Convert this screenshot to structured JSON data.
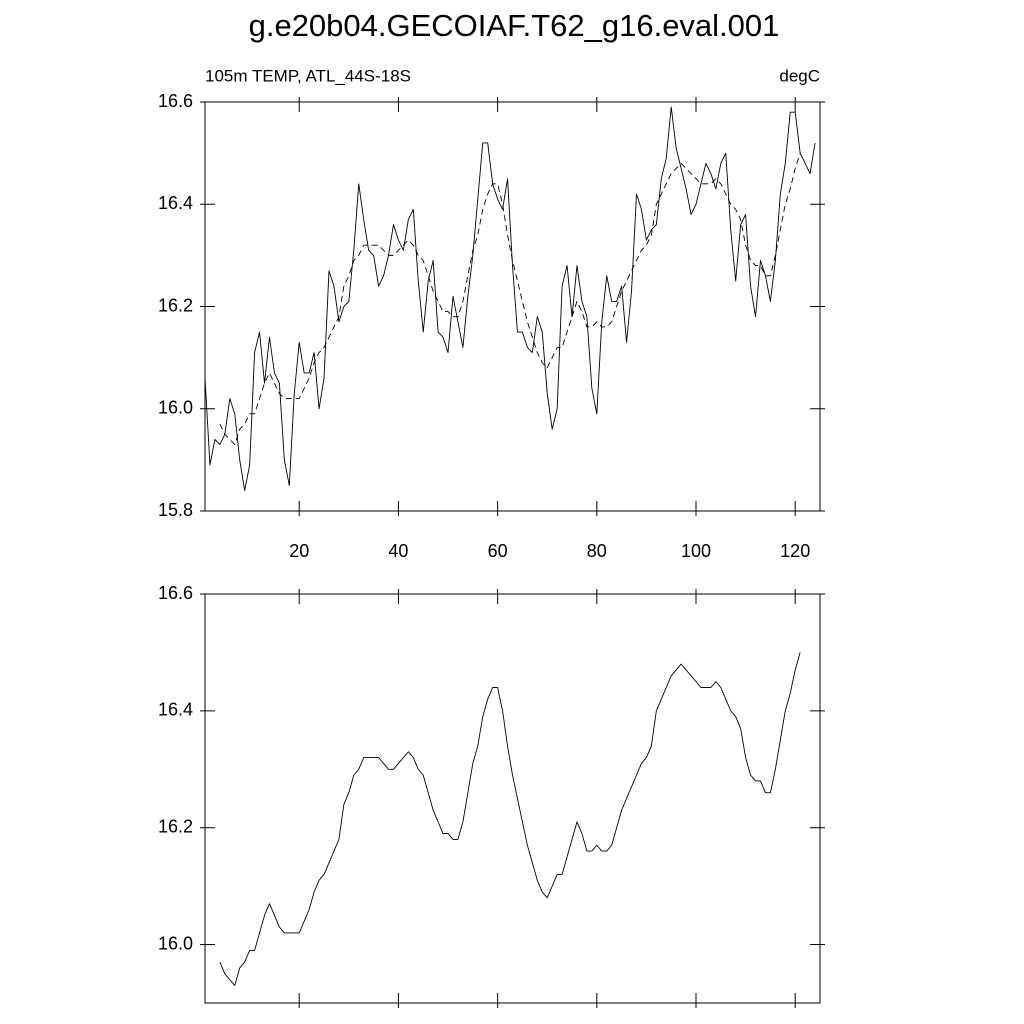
{
  "chart_data": [
    {
      "type": "line",
      "title": "g.e20b04.GECOIAF.T62_g16.eval.001",
      "subtitle": "105m TEMP, ATL_44S-18S",
      "units_label": "degC",
      "x": [
        1,
        2,
        3,
        4,
        5,
        6,
        7,
        8,
        9,
        10,
        11,
        12,
        13,
        14,
        15,
        16,
        17,
        18,
        19,
        20,
        21,
        22,
        23,
        24,
        25,
        26,
        27,
        28,
        29,
        30,
        31,
        32,
        33,
        34,
        35,
        36,
        37,
        38,
        39,
        40,
        41,
        42,
        43,
        44,
        45,
        46,
        47,
        48,
        49,
        50,
        51,
        52,
        53,
        54,
        55,
        56,
        57,
        58,
        59,
        60,
        61,
        62,
        63,
        64,
        65,
        66,
        67,
        68,
        69,
        70,
        71,
        72,
        73,
        74,
        75,
        76,
        77,
        78,
        79,
        80,
        81,
        82,
        83,
        84,
        85,
        86,
        87,
        88,
        89,
        90,
        91,
        92,
        93,
        94,
        95,
        96,
        97,
        98,
        99,
        100,
        101,
        102,
        103,
        104,
        105,
        106,
        107,
        108,
        109,
        110,
        111,
        112,
        113,
        114,
        115,
        116,
        117,
        118,
        119,
        120,
        121,
        122,
        123,
        124
      ],
      "series": [
        {
          "color": "#000000",
          "style": "solid",
          "values": [
            16.06,
            15.89,
            15.94,
            15.93,
            15.95,
            16.02,
            15.99,
            15.9,
            15.84,
            15.89,
            16.11,
            16.15,
            16.05,
            16.14,
            16.07,
            16.05,
            15.9,
            15.85,
            16.03,
            16.13,
            16.07,
            16.07,
            16.11,
            16.0,
            16.06,
            16.27,
            16.24,
            16.17,
            16.2,
            16.21,
            16.31,
            16.44,
            16.37,
            16.31,
            16.3,
            16.24,
            16.26,
            16.3,
            16.36,
            16.33,
            16.31,
            16.37,
            16.39,
            16.25,
            16.15,
            16.25,
            16.29,
            16.15,
            16.14,
            16.11,
            16.22,
            16.17,
            16.12,
            16.22,
            16.3,
            16.41,
            16.52,
            16.52,
            16.44,
            16.41,
            16.39,
            16.45,
            16.28,
            16.15,
            16.15,
            16.12,
            16.11,
            16.18,
            16.15,
            16.03,
            15.96,
            16.0,
            16.24,
            16.28,
            16.18,
            16.28,
            16.21,
            16.18,
            16.04,
            15.99,
            16.17,
            16.26,
            16.21,
            16.21,
            16.24,
            16.13,
            16.23,
            16.42,
            16.39,
            16.33,
            16.35,
            16.36,
            16.45,
            16.49,
            16.59,
            16.51,
            16.47,
            16.43,
            16.38,
            16.4,
            16.44,
            16.48,
            16.46,
            16.43,
            16.48,
            16.5,
            16.35,
            16.25,
            16.36,
            16.38,
            16.24,
            16.18,
            16.29,
            16.26,
            16.21,
            16.29,
            16.42,
            16.48,
            16.58,
            16.58,
            16.5,
            16.48,
            16.46,
            16.52
          ]
        },
        {
          "color": "#000000",
          "style": "dashed",
          "values": [
            null,
            null,
            null,
            15.97,
            15.95,
            15.94,
            15.93,
            15.96,
            15.97,
            15.99,
            15.99,
            16.02,
            16.05,
            16.07,
            16.05,
            16.03,
            16.02,
            16.02,
            16.02,
            16.02,
            16.04,
            16.06,
            16.09,
            16.11,
            16.12,
            16.14,
            16.16,
            16.18,
            16.24,
            16.26,
            16.29,
            16.3,
            16.32,
            16.32,
            16.32,
            16.32,
            16.31,
            16.3,
            16.3,
            16.31,
            16.32,
            16.33,
            16.32,
            16.3,
            16.29,
            16.26,
            16.23,
            16.21,
            16.19,
            16.19,
            16.18,
            16.18,
            16.21,
            16.26,
            16.31,
            16.34,
            16.39,
            16.42,
            16.44,
            16.44,
            16.4,
            16.34,
            16.29,
            16.25,
            16.21,
            16.17,
            16.14,
            16.11,
            16.09,
            16.08,
            16.1,
            16.12,
            16.12,
            16.15,
            16.18,
            16.21,
            16.19,
            16.16,
            16.16,
            16.17,
            16.16,
            16.16,
            16.17,
            16.2,
            16.23,
            16.25,
            16.27,
            16.29,
            16.31,
            16.32,
            16.34,
            16.4,
            16.42,
            16.44,
            16.46,
            16.47,
            16.48,
            16.47,
            16.46,
            16.45,
            16.44,
            16.44,
            16.44,
            16.45,
            16.44,
            16.42,
            16.4,
            16.39,
            16.37,
            16.32,
            16.29,
            16.28,
            16.28,
            16.26,
            16.26,
            16.3,
            16.35,
            16.4,
            16.43,
            16.47,
            16.5,
            null,
            null,
            null
          ]
        }
      ],
      "xlim": [
        1,
        125
      ],
      "xticks": [
        20,
        40,
        60,
        80,
        100,
        120
      ],
      "xticklabels": true,
      "ylim": [
        15.8,
        16.6
      ],
      "yticks": [
        15.8,
        {
          "value": 16,
          "label": "16.0"
        },
        16.2,
        16.4,
        16.6
      ]
    },
    {
      "type": "line",
      "x": [
        1,
        2,
        3,
        4,
        5,
        6,
        7,
        8,
        9,
        10,
        11,
        12,
        13,
        14,
        15,
        16,
        17,
        18,
        19,
        20,
        21,
        22,
        23,
        24,
        25,
        26,
        27,
        28,
        29,
        30,
        31,
        32,
        33,
        34,
        35,
        36,
        37,
        38,
        39,
        40,
        41,
        42,
        43,
        44,
        45,
        46,
        47,
        48,
        49,
        50,
        51,
        52,
        53,
        54,
        55,
        56,
        57,
        58,
        59,
        60,
        61,
        62,
        63,
        64,
        65,
        66,
        67,
        68,
        69,
        70,
        71,
        72,
        73,
        74,
        75,
        76,
        77,
        78,
        79,
        80,
        81,
        82,
        83,
        84,
        85,
        86,
        87,
        88,
        89,
        90,
        91,
        92,
        93,
        94,
        95,
        96,
        97,
        98,
        99,
        100,
        101,
        102,
        103,
        104,
        105,
        106,
        107,
        108,
        109,
        110,
        111,
        112,
        113,
        114,
        115,
        116,
        117,
        118,
        119,
        120,
        121,
        122,
        123,
        124
      ],
      "series": [
        {
          "color": "#000000",
          "style": "solid",
          "values": [
            null,
            null,
            null,
            15.97,
            15.95,
            15.94,
            15.93,
            15.96,
            15.97,
            15.99,
            15.99,
            16.02,
            16.05,
            16.07,
            16.05,
            16.03,
            16.02,
            16.02,
            16.02,
            16.02,
            16.04,
            16.06,
            16.09,
            16.11,
            16.12,
            16.14,
            16.16,
            16.18,
            16.24,
            16.26,
            16.29,
            16.3,
            16.32,
            16.32,
            16.32,
            16.32,
            16.31,
            16.3,
            16.3,
            16.31,
            16.32,
            16.33,
            16.32,
            16.3,
            16.29,
            16.26,
            16.23,
            16.21,
            16.19,
            16.19,
            16.18,
            16.18,
            16.21,
            16.26,
            16.31,
            16.34,
            16.39,
            16.42,
            16.44,
            16.44,
            16.4,
            16.34,
            16.29,
            16.25,
            16.21,
            16.17,
            16.14,
            16.11,
            16.09,
            16.08,
            16.1,
            16.12,
            16.12,
            16.15,
            16.18,
            16.21,
            16.19,
            16.16,
            16.16,
            16.17,
            16.16,
            16.16,
            16.17,
            16.2,
            16.23,
            16.25,
            16.27,
            16.29,
            16.31,
            16.32,
            16.34,
            16.4,
            16.42,
            16.44,
            16.46,
            16.47,
            16.48,
            16.47,
            16.46,
            16.45,
            16.44,
            16.44,
            16.44,
            16.45,
            16.44,
            16.42,
            16.4,
            16.39,
            16.37,
            16.32,
            16.29,
            16.28,
            16.28,
            16.26,
            16.26,
            16.3,
            16.35,
            16.4,
            16.43,
            16.47,
            16.5,
            null,
            null,
            null
          ]
        }
      ],
      "xlim": [
        1,
        125
      ],
      "xticks": [
        20,
        40,
        60,
        80,
        100,
        120
      ],
      "xticklabels": false,
      "ylim": [
        15.9,
        16.6
      ],
      "yticks": [
        {
          "value": 16,
          "label": "16.0"
        },
        16.2,
        16.4,
        16.6
      ]
    }
  ]
}
